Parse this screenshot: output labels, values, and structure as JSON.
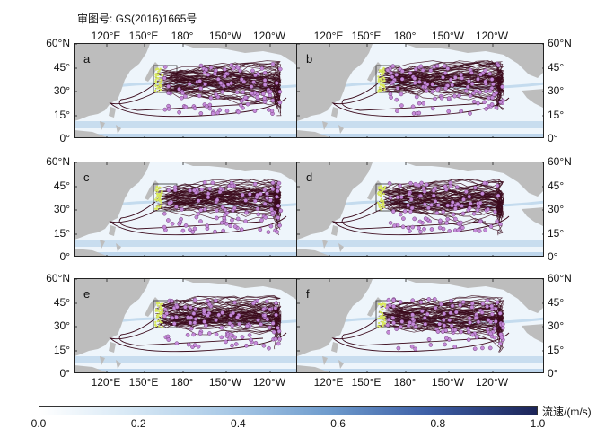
{
  "figure": {
    "header": "审图号: GS(2016)1665号",
    "lon_tick_labels": [
      "120°E",
      "150°E",
      "180°",
      "150°W",
      "120°W"
    ],
    "lat_tick_labels": [
      "60°N",
      "45°",
      "30°",
      "15°",
      "0°"
    ],
    "panels": [
      {
        "letter": "a"
      },
      {
        "letter": "b"
      },
      {
        "letter": "c"
      },
      {
        "letter": "d"
      },
      {
        "letter": "e"
      },
      {
        "letter": "f"
      }
    ],
    "colorbar": {
      "label": "流速/(m/s)",
      "tick_labels": [
        "0.0",
        "0.2",
        "0.4",
        "0.6",
        "0.8",
        "1.0"
      ],
      "range": [
        0,
        1
      ],
      "colors": [
        "#ffffff",
        "#1c2458"
      ]
    },
    "colors": {
      "land": "#bdbdbd",
      "ocean_light": "#eef5fb",
      "current_band": "#a9c9e6",
      "trajectory": "#3b0a1c",
      "endpoint": "#c58ad9",
      "release_points": "#d8e85c"
    }
  }
}
